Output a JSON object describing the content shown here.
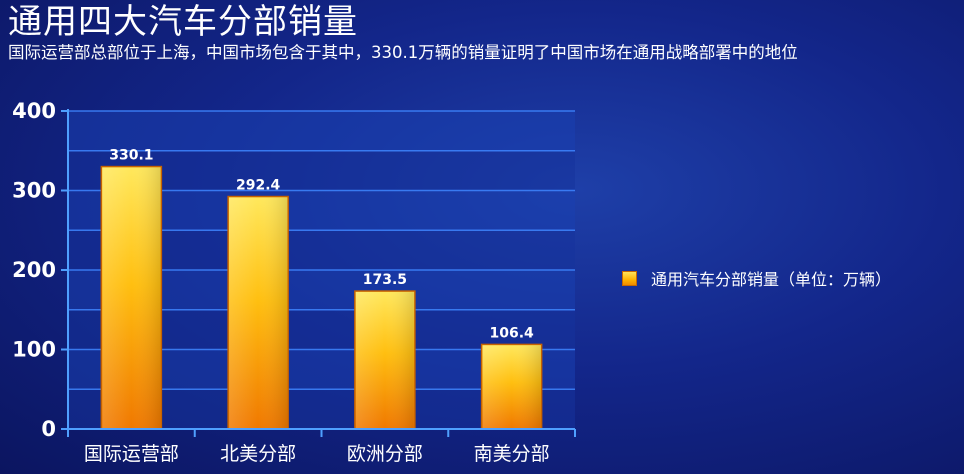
{
  "title": "通用四大汽车分部销量",
  "subtitle": "国际运营部总部位于上海，中国市场包含于其中，330.1万辆的销量证明了中国市场在通用战略部署中的地位",
  "chart_data": {
    "type": "bar",
    "categories": [
      "国际运营部",
      "北美分部",
      "欧洲分部",
      "南美分部"
    ],
    "series": [
      {
        "name": "通用汽车分部销量（单位：万辆）",
        "values": [
          330.1,
          292.4,
          173.5,
          106.4
        ]
      }
    ],
    "data_labels": [
      "330.1",
      "292.4",
      "173.5",
      "106.4"
    ],
    "y_ticks": [
      "0",
      "100",
      "200",
      "300",
      "400"
    ],
    "ylim": [
      0,
      400
    ],
    "grid": true,
    "legend_position": "right",
    "bar_color": "#ffb300"
  }
}
